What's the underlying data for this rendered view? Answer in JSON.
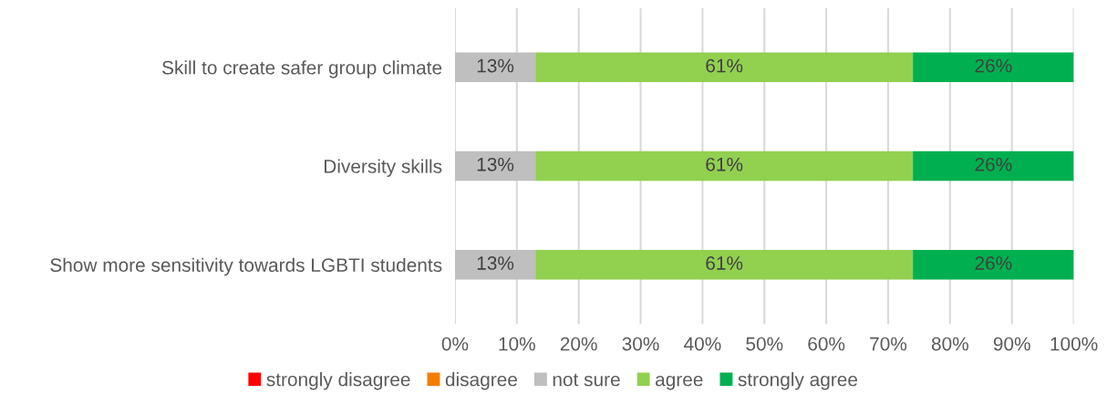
{
  "chart_data": {
    "type": "bar",
    "orientation": "horizontal",
    "stacked": true,
    "categories": [
      "Skill to create safer group climate",
      "Diversity skills",
      "Show more sensitivity towards LGBTI students"
    ],
    "series": [
      {
        "name": "strongly disagree",
        "color": "#ff0000",
        "values": [
          0,
          0,
          0
        ],
        "value_labels": [
          null,
          null,
          null
        ]
      },
      {
        "name": "disagree",
        "color": "#f57c00",
        "values": [
          0,
          0,
          0
        ],
        "value_labels": [
          null,
          null,
          null
        ]
      },
      {
        "name": "not sure",
        "color": "#bfbfbf",
        "values": [
          13,
          13,
          13
        ],
        "value_labels": [
          "13%",
          "13%",
          "13%"
        ]
      },
      {
        "name": "agree",
        "color": "#92d050",
        "values": [
          61,
          61,
          61
        ],
        "value_labels": [
          "61%",
          "61%",
          "61%"
        ]
      },
      {
        "name": "strongly agree",
        "color": "#00b050",
        "values": [
          26,
          26,
          26
        ],
        "value_labels": [
          "26%",
          "26%",
          "26%"
        ]
      }
    ],
    "xlim": [
      0,
      100
    ],
    "xticks": [
      {
        "value": 0,
        "label": "0%"
      },
      {
        "value": 10,
        "label": "10%"
      },
      {
        "value": 20,
        "label": "20%"
      },
      {
        "value": 30,
        "label": "30%"
      },
      {
        "value": 40,
        "label": "40%"
      },
      {
        "value": 50,
        "label": "50%"
      },
      {
        "value": 60,
        "label": "60%"
      },
      {
        "value": 70,
        "label": "70%"
      },
      {
        "value": 80,
        "label": "80%"
      },
      {
        "value": 90,
        "label": "90%"
      },
      {
        "value": 100,
        "label": "100%"
      }
    ],
    "grid": "x",
    "legend": "bottom"
  }
}
